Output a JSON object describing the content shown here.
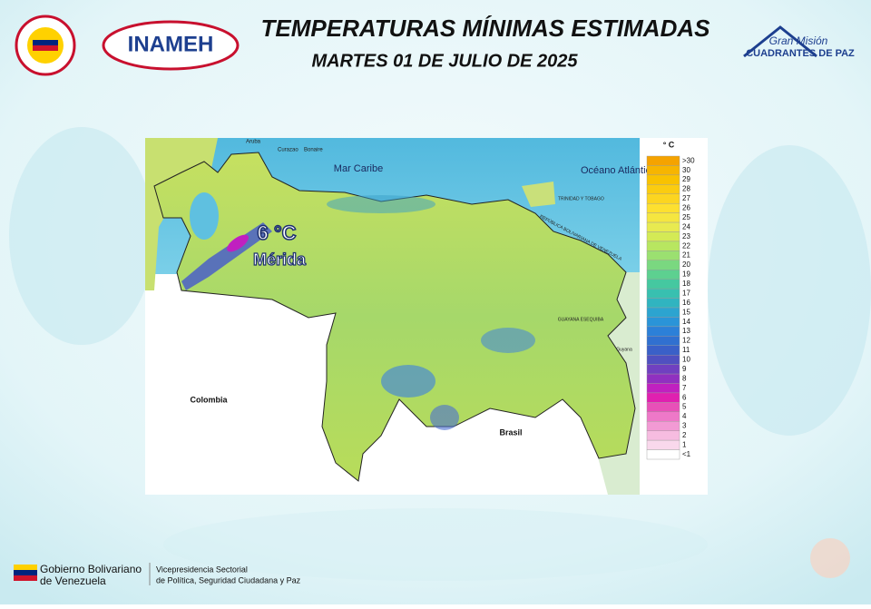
{
  "header": {
    "title": "TEMPERATURAS MÍNIMAS ESTIMADAS",
    "date": "MARTES 01 DE JULIO DE 2025",
    "logo_left": "INAMEH",
    "logo_right_top": "Gran Misión",
    "logo_right_bottom": "CUADRANTES DE PAZ"
  },
  "map": {
    "labels": {
      "aruba": "Aruba",
      "curazao": "Curazao",
      "bonaire": "Bonaire",
      "sea": "Mar Caribe",
      "ocean": "Océano Atlántico",
      "trinidad": "TRINIDAD Y TOBAGO",
      "venezuela": "REPÚBLICA BOLIVARIANA DE VENEZUELA",
      "colombia": "Colombia",
      "brasil": "Brasil",
      "esequiba": "GUAYANA ESEQUIBA",
      "guyana": "Guyana"
    },
    "highlight": {
      "value": "6 °C",
      "place": "Mérida"
    }
  },
  "legend": {
    "unit": "° C",
    "bins": [
      {
        "label": ">30",
        "color": "#f5a300"
      },
      {
        "label": "30",
        "color": "#f7b500"
      },
      {
        "label": "29",
        "color": "#f9c200"
      },
      {
        "label": "28",
        "color": "#fbcc10"
      },
      {
        "label": "27",
        "color": "#fcd520"
      },
      {
        "label": "26",
        "color": "#fde030"
      },
      {
        "label": "25",
        "color": "#f5e640"
      },
      {
        "label": "24",
        "color": "#e8ea50"
      },
      {
        "label": "23",
        "color": "#d4ea55"
      },
      {
        "label": "22",
        "color": "#b8e660"
      },
      {
        "label": "21",
        "color": "#9be070"
      },
      {
        "label": "20",
        "color": "#7ad880"
      },
      {
        "label": "19",
        "color": "#5dd090"
      },
      {
        "label": "18",
        "color": "#45c8a0"
      },
      {
        "label": "17",
        "color": "#38c0b0"
      },
      {
        "label": "16",
        "color": "#30b4c0"
      },
      {
        "label": "15",
        "color": "#2ca4d0"
      },
      {
        "label": "14",
        "color": "#2a94d8"
      },
      {
        "label": "13",
        "color": "#2c80d8"
      },
      {
        "label": "12",
        "color": "#3070d0"
      },
      {
        "label": "11",
        "color": "#3a60c8"
      },
      {
        "label": "10",
        "color": "#5050c0"
      },
      {
        "label": "9",
        "color": "#7040c0"
      },
      {
        "label": "8",
        "color": "#9030c0"
      },
      {
        "label": "7",
        "color": "#c020c0"
      },
      {
        "label": "6",
        "color": "#e020b0"
      },
      {
        "label": "5",
        "color": "#e850b8"
      },
      {
        "label": "4",
        "color": "#ee78c8"
      },
      {
        "label": "3",
        "color": "#f29ad4"
      },
      {
        "label": "2",
        "color": "#f6bce0"
      },
      {
        "label": "1",
        "color": "#f9d8ec"
      },
      {
        "label": "<1",
        "color": "#ffffff"
      }
    ]
  },
  "footer": {
    "gov_line1": "Gobierno Bolivariano",
    "gov_line2": "de Venezuela",
    "vice_line1": "Vicepresidencia Sectorial",
    "vice_line2": "de Política, Seguridad Ciudadana y Paz"
  }
}
